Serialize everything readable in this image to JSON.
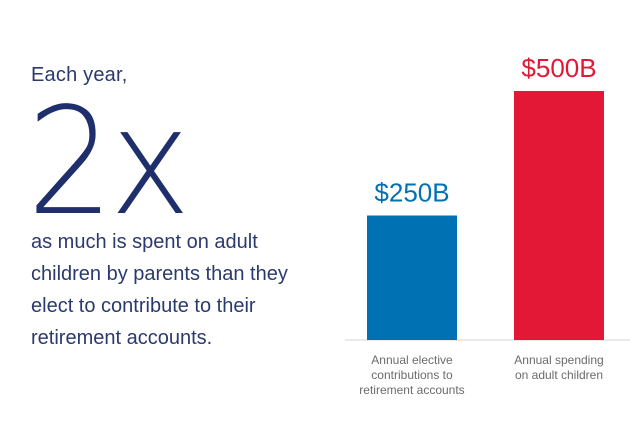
{
  "intro": "Each year,",
  "multiplier": "2x",
  "description": "as much is spent on adult children by parents than they elect to contribute to their retirement accounts.",
  "colors": {
    "navy": "#1f2f6b",
    "blue": "#0071b3",
    "red": "#e31837",
    "gray": "#6b6b6b"
  },
  "chart_data": {
    "type": "bar",
    "categories": [
      [
        "Annual elective",
        "contributions to",
        "retirement accounts"
      ],
      [
        "Annual spending",
        "on adult children"
      ]
    ],
    "values": [
      250,
      500
    ],
    "value_labels": [
      "$250B",
      "$500B"
    ],
    "bar_colors": [
      "#0071b3",
      "#e31837"
    ],
    "ylim": [
      0,
      500
    ],
    "grid": false,
    "title": "",
    "xlabel": "",
    "ylabel": ""
  }
}
